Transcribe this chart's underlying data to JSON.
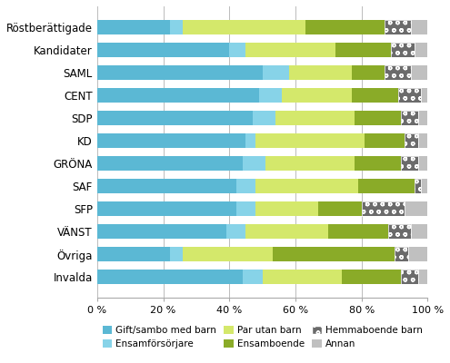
{
  "categories": [
    "Röstberättigade",
    "Kandidater",
    "SAML",
    "CENT",
    "SDP",
    "KD",
    "GRÖNA",
    "SAF",
    "SFP",
    "VÄNST",
    "Övriga",
    "Invalda"
  ],
  "series": {
    "Gift/sambo med barn": [
      22,
      40,
      50,
      49,
      47,
      45,
      44,
      42,
      42,
      39,
      22,
      44
    ],
    "Ensamförsörjare": [
      4,
      5,
      8,
      7,
      7,
      3,
      7,
      6,
      6,
      6,
      4,
      6
    ],
    "Par utan barn": [
      37,
      27,
      19,
      21,
      24,
      33,
      27,
      31,
      19,
      25,
      27,
      24
    ],
    "Ensamboende": [
      24,
      17,
      10,
      14,
      14,
      12,
      14,
      17,
      13,
      18,
      37,
      18
    ],
    "Hemmaboende barn": [
      8,
      7,
      8,
      7,
      5,
      4,
      5,
      2,
      13,
      7,
      4,
      5
    ],
    "Annan": [
      5,
      4,
      5,
      2,
      3,
      3,
      3,
      2,
      7,
      5,
      6,
      3
    ]
  },
  "colors": {
    "Gift/sambo med barn": "#5bb8d4",
    "Ensamförsörjare": "#87d3e8",
    "Par utan barn": "#d4e86b",
    "Ensamboende": "#8aab28",
    "Hemmaboende barn": "#6b6b6b",
    "Annan": "#c0c0c0"
  },
  "xticks": [
    0,
    20,
    40,
    60,
    80,
    100
  ],
  "xticklabels": [
    "0 %",
    "20 %",
    "40 %",
    "60 %",
    "80 %",
    "100 %"
  ],
  "legend_labels": [
    "Gift/sambo med barn",
    "Ensamförsörjare",
    "Par utan barn",
    "Ensamboende",
    "Hemmaboende barn",
    "Annan"
  ],
  "figsize": [
    4.95,
    4.0
  ],
  "dpi": 100
}
